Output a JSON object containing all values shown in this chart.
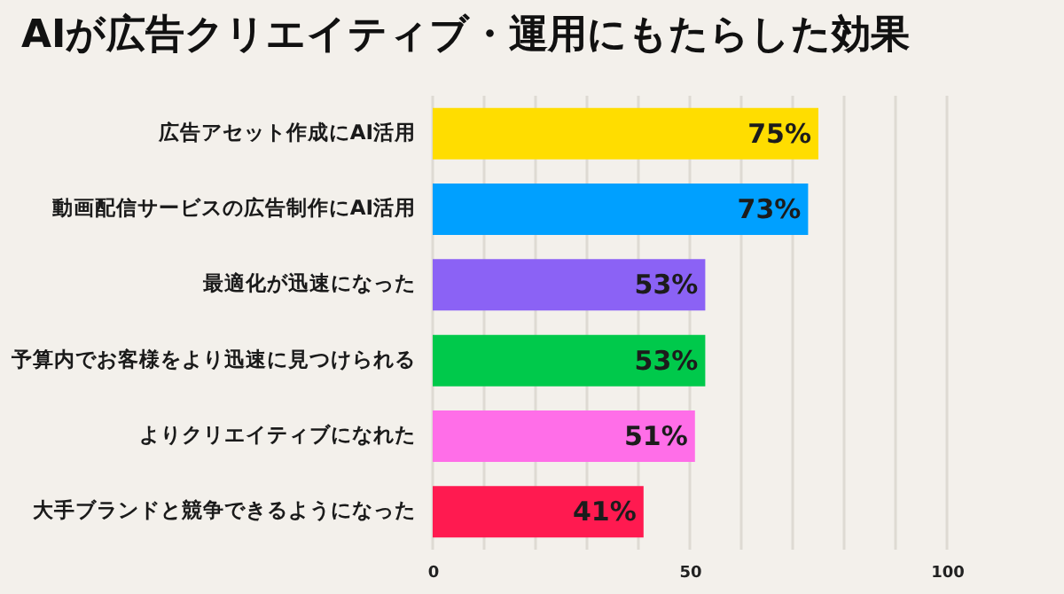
{
  "chart_data": {
    "type": "bar",
    "orientation": "horizontal",
    "title": "AIが広告クリエイティブ・運用にもたらした効果",
    "categories": [
      "広告アセット作成にAI活用",
      "動画配信サービスの広告制作にAI活用",
      "最適化が迅速になった",
      "予算内でお客様をより迅速に見つけられる",
      "よりクリエイティブになれた",
      "大手ブランドと競争できるようになった"
    ],
    "values": [
      75,
      73,
      53,
      53,
      51,
      41
    ],
    "colors": [
      "#ffdd00",
      "#00a0ff",
      "#8b62f5",
      "#00c94b",
      "#ff6ee8",
      "#ff1a50"
    ],
    "value_labels": [
      "75%",
      "73%",
      "53%",
      "53%",
      "51%",
      "41%"
    ],
    "xlim": [
      0,
      100
    ],
    "xticks": [
      0,
      {
        "value": 10,
        "label": null
      },
      {
        "value": 20,
        "label": null
      },
      {
        "value": 30,
        "label": null
      },
      {
        "value": 40,
        "label": null
      },
      50,
      {
        "value": 60,
        "label": null
      },
      {
        "value": 70,
        "label": null
      },
      {
        "value": 80,
        "label": null
      },
      {
        "value": 90,
        "label": null
      },
      100
    ],
    "grid": "x"
  }
}
